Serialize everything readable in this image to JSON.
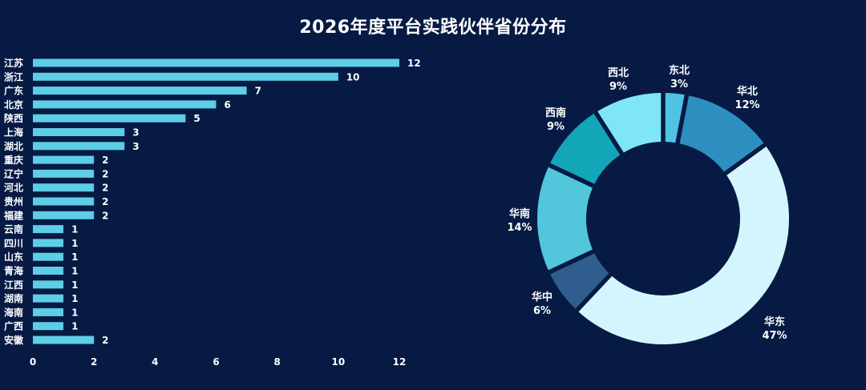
{
  "chart_data": [
    {
      "type": "bar",
      "orientation": "horizontal",
      "title": "2026年度平台实践伙伴省份分布",
      "categories": [
        "江苏",
        "浙江",
        "广东",
        "北京",
        "陕西",
        "上海",
        "湖北",
        "重庆",
        "辽宁",
        "河北",
        "贵州",
        "福建",
        "云南",
        "四川",
        "山东",
        "青海",
        "江西",
        "湖南",
        "海南",
        "广西",
        "安徽"
      ],
      "values": [
        12,
        10,
        7,
        6,
        5,
        3,
        3,
        2,
        2,
        2,
        2,
        2,
        1,
        1,
        1,
        1,
        1,
        1,
        1,
        1,
        2
      ],
      "xlim": [
        0,
        12
      ],
      "xticks": [
        0,
        2,
        4,
        6,
        8,
        10,
        12
      ],
      "bar_color": "#5ecde6"
    },
    {
      "type": "pie",
      "style": "donut",
      "slices": [
        {
          "label": "东北",
          "value": 3,
          "pct": "3%",
          "color": "#4fc3e3"
        },
        {
          "label": "华北",
          "value": 12,
          "pct": "12%",
          "color": "#2d8fc0"
        },
        {
          "label": "华东",
          "value": 47,
          "pct": "47%",
          "color": "#d4f5fd"
        },
        {
          "label": "华中",
          "value": 6,
          "pct": "6%",
          "color": "#2e5d8e"
        },
        {
          "label": "华南",
          "value": 14,
          "pct": "14%",
          "color": "#52c6da"
        },
        {
          "label": "西南",
          "value": 9,
          "pct": "9%",
          "color": "#13a6b8"
        },
        {
          "label": "西北",
          "value": 9,
          "pct": "9%",
          "color": "#7fe6f8"
        }
      ]
    }
  ]
}
